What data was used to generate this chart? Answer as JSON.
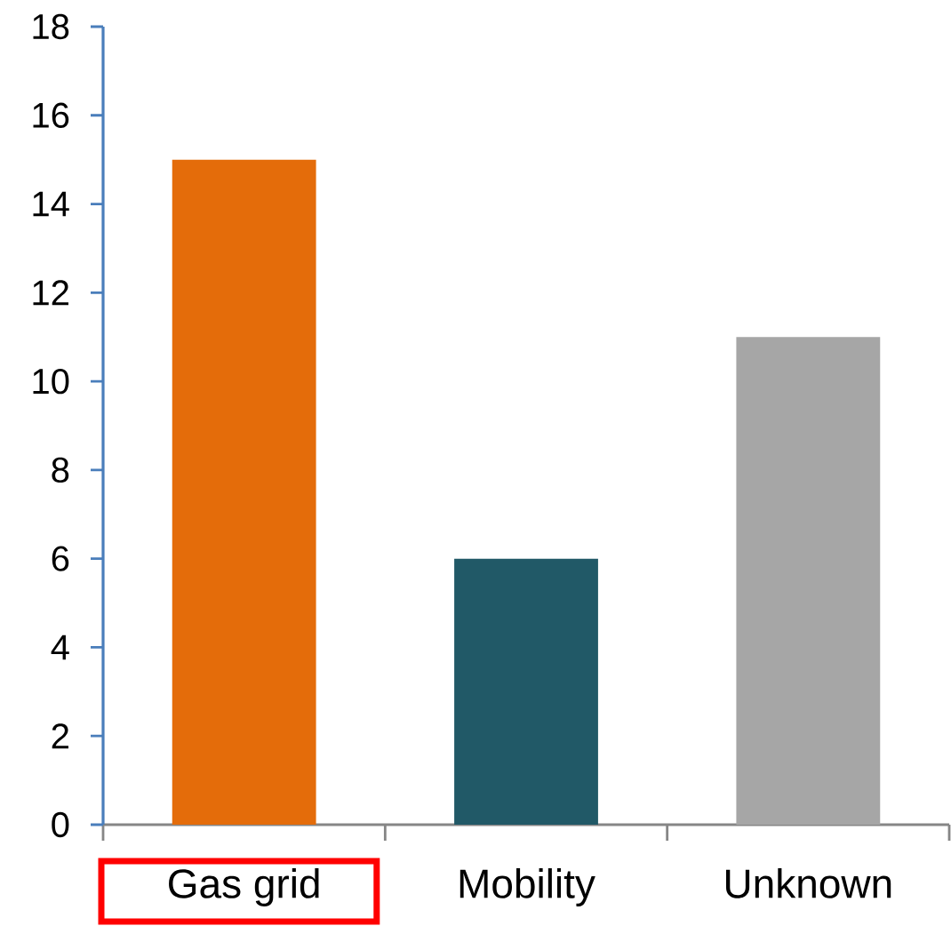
{
  "chart_data": {
    "type": "bar",
    "categories": [
      "Gas grid",
      "Mobility",
      "Unknown"
    ],
    "values": [
      15,
      6,
      11
    ],
    "colors": [
      "#e46c0a",
      "#215967",
      "#a6a6a6"
    ],
    "ylim": [
      0,
      18
    ],
    "yticks": [
      0,
      2,
      4,
      6,
      8,
      10,
      12,
      14,
      16,
      18
    ]
  }
}
